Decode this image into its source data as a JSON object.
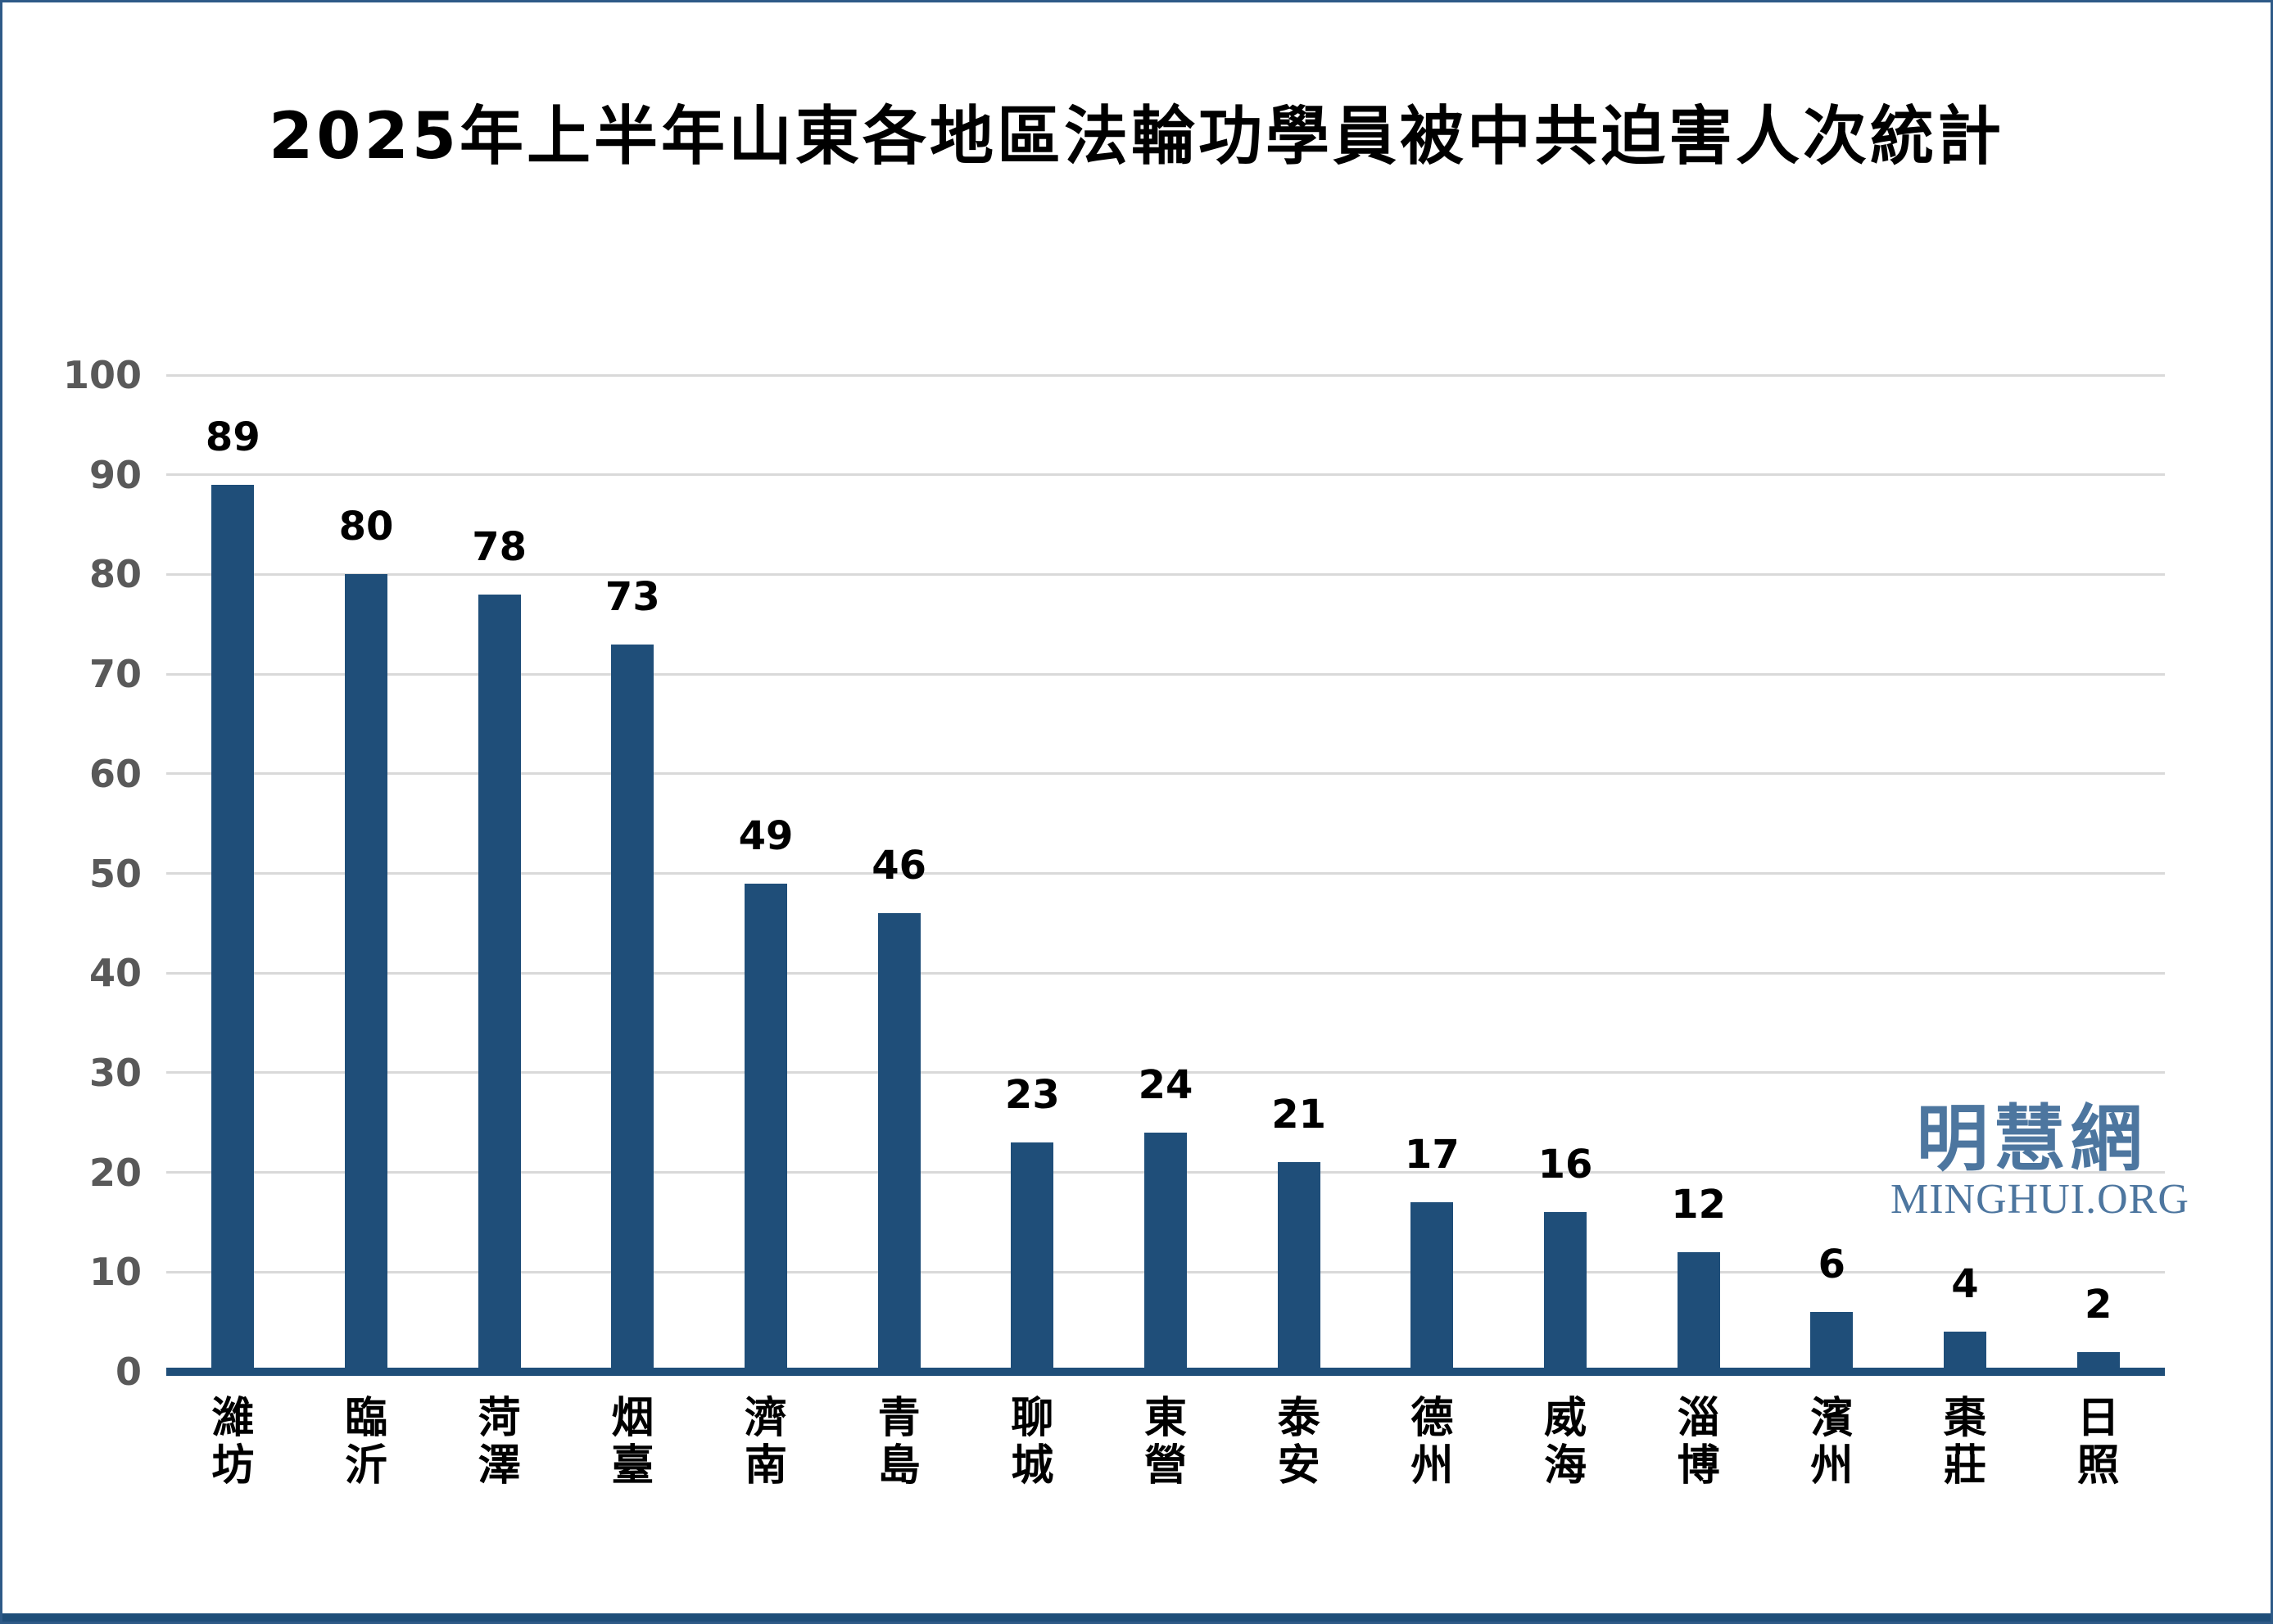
{
  "page": {
    "background": "#ffffff",
    "border_color": "#2e5a87",
    "footer_color": "#1f4e79"
  },
  "watermark": {
    "cjk": "明慧網",
    "latin": "MINGHUI.ORG",
    "color": "#4d769f"
  },
  "chart_data": {
    "type": "bar",
    "title": "2025年上半年山東各地區法輪功學員被中共迫害人次統計",
    "categories": [
      "濰坊",
      "臨沂",
      "菏澤",
      "烟臺",
      "濟南",
      "青島",
      "聊城",
      "東營",
      "泰安",
      "德州",
      "威海",
      "淄博",
      "濱州",
      "棗莊",
      "日照"
    ],
    "values": [
      89,
      80,
      78,
      73,
      49,
      46,
      23,
      24,
      21,
      17,
      16,
      12,
      6,
      4,
      2
    ],
    "xlabel": "",
    "ylabel": "",
    "ylim": [
      0,
      100
    ],
    "yticks": [
      0,
      10,
      20,
      30,
      40,
      50,
      60,
      70,
      80,
      90,
      100
    ],
    "grid": true,
    "legend": false,
    "bar_color": "#1f4e79",
    "baseline_color": "#1f4e79",
    "gridline_color": "#d9d9d9",
    "axis_label_color": "#595959",
    "value_label_color": "#000000"
  }
}
